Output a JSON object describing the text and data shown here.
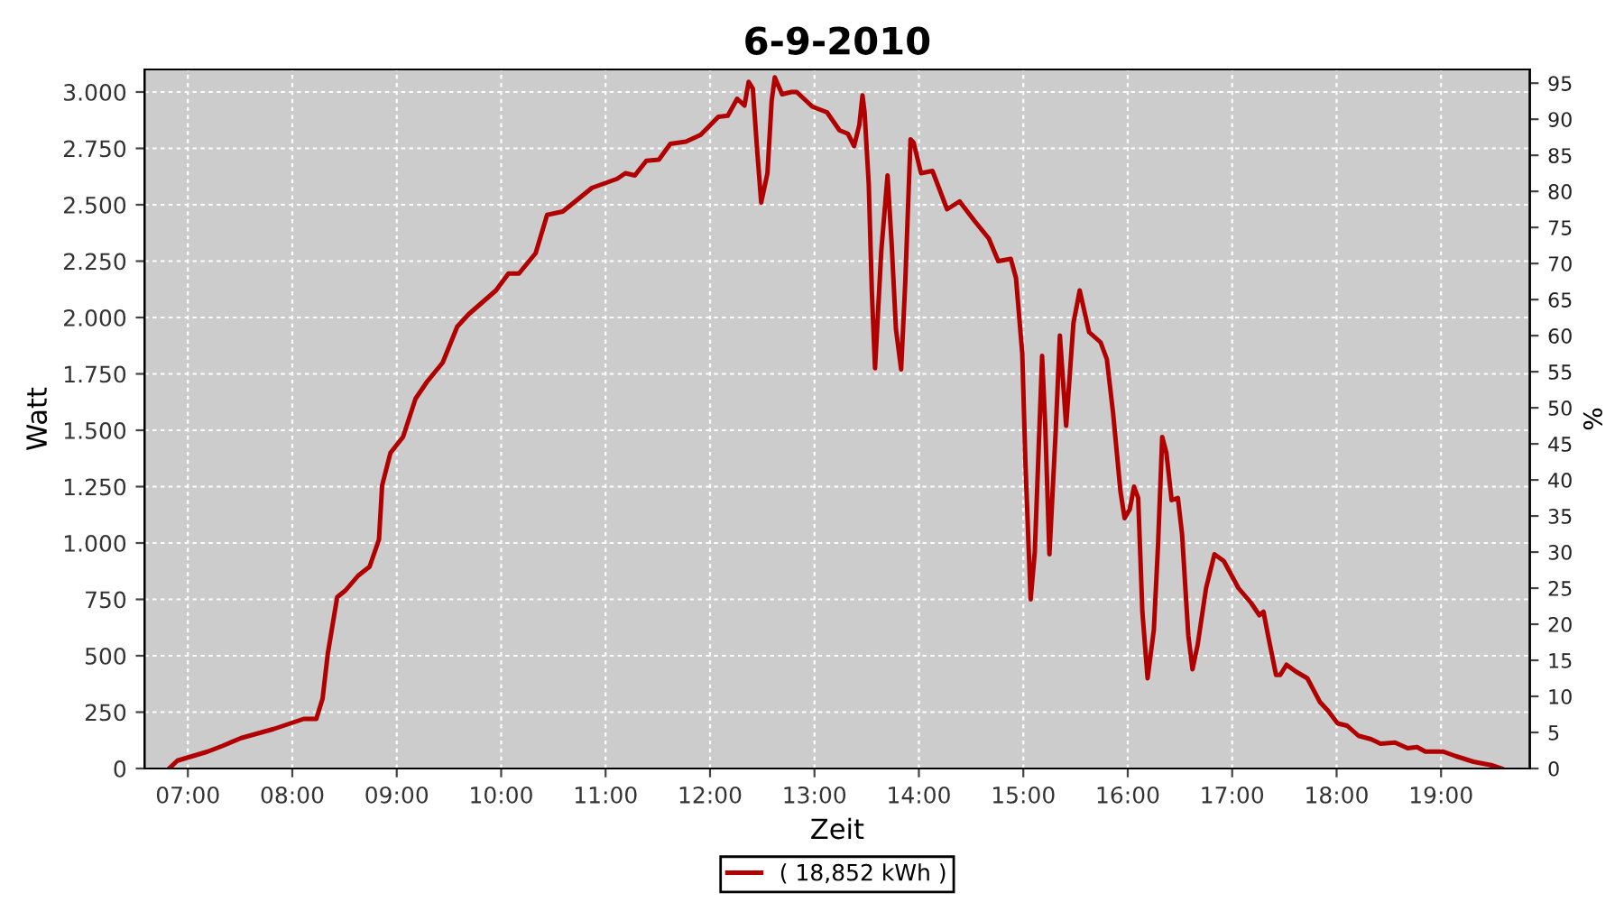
{
  "chart_data": {
    "type": "line",
    "title": "6-9-2010",
    "xlabel": "Zeit",
    "ylabel": "Watt",
    "y2label": "%",
    "x": [
      6.82,
      6.9,
      7.19,
      7.33,
      7.51,
      7.82,
      8.11,
      8.23,
      8.29,
      8.34,
      8.43,
      8.51,
      8.63,
      8.74,
      8.83,
      8.86,
      8.94,
      9.06,
      9.18,
      9.29,
      9.44,
      9.58,
      9.69,
      9.95,
      10.07,
      10.17,
      10.33,
      10.44,
      10.59,
      10.87,
      11.11,
      11.19,
      11.28,
      11.39,
      11.51,
      11.62,
      11.77,
      11.91,
      12.08,
      12.17,
      12.26,
      12.33,
      12.37,
      12.41,
      12.45,
      12.49,
      12.55,
      12.59,
      12.62,
      12.69,
      12.78,
      12.83,
      12.98,
      13.12,
      13.24,
      13.32,
      13.38,
      13.43,
      13.46,
      13.48,
      13.52,
      13.55,
      13.58,
      13.64,
      13.7,
      13.74,
      13.78,
      13.83,
      13.87,
      13.92,
      13.95,
      14.02,
      14.13,
      14.27,
      14.39,
      14.53,
      14.67,
      14.76,
      14.88,
      14.93,
      14.99,
      15.02,
      15.07,
      15.11,
      15.18,
      15.21,
      15.25,
      15.31,
      15.35,
      15.41,
      15.48,
      15.54,
      15.63,
      15.74,
      15.8,
      15.86,
      15.93,
      15.97,
      16.02,
      16.06,
      16.1,
      16.14,
      16.19,
      16.25,
      16.29,
      16.33,
      16.37,
      16.42,
      16.48,
      16.52,
      16.58,
      16.62,
      16.67,
      16.75,
      16.83,
      16.92,
      17.06,
      17.18,
      17.26,
      17.3,
      17.35,
      17.42,
      17.46,
      17.52,
      17.61,
      17.72,
      17.84,
      17.92,
      18.01,
      18.1,
      18.21,
      18.33,
      18.42,
      18.56,
      18.68,
      18.77,
      18.85,
      19.02,
      19.14,
      19.31,
      19.48,
      19.58
    ],
    "series": [
      {
        "name": "( 18,852 kWh )",
        "color": "#b00000",
        "values": [
          0,
          35,
          75,
          100,
          135,
          175,
          220,
          220,
          310,
          510,
          760,
          790,
          855,
          895,
          1015,
          1255,
          1400,
          1470,
          1640,
          1715,
          1800,
          1960,
          2015,
          2120,
          2195,
          2195,
          2285,
          2455,
          2470,
          2575,
          2615,
          2640,
          2630,
          2695,
          2700,
          2770,
          2780,
          2810,
          2890,
          2895,
          2970,
          2940,
          3045,
          3015,
          2750,
          2510,
          2640,
          2960,
          3065,
          2990,
          3000,
          3000,
          2935,
          2910,
          2830,
          2815,
          2760,
          2855,
          2985,
          2910,
          2590,
          2110,
          1775,
          2295,
          2630,
          2320,
          1950,
          1770,
          2160,
          2790,
          2775,
          2640,
          2650,
          2480,
          2515,
          2430,
          2350,
          2250,
          2260,
          2175,
          1840,
          1360,
          750,
          960,
          1830,
          1520,
          950,
          1495,
          1920,
          1520,
          1975,
          2120,
          1935,
          1890,
          1815,
          1575,
          1230,
          1110,
          1150,
          1250,
          1200,
          695,
          400,
          615,
          990,
          1470,
          1400,
          1190,
          1200,
          1040,
          590,
          440,
          550,
          800,
          950,
          920,
          800,
          735,
          680,
          695,
          575,
          415,
          415,
          460,
          430,
          400,
          295,
          255,
          200,
          190,
          145,
          130,
          110,
          115,
          90,
          95,
          75,
          75,
          55,
          30,
          15,
          0
        ]
      }
    ],
    "xlim": [
      6.585,
      19.85
    ],
    "xticks": [
      {
        "value": 7,
        "label": "07:00"
      },
      {
        "value": 8,
        "label": "08:00"
      },
      {
        "value": 9,
        "label": "09:00"
      },
      {
        "value": 10,
        "label": "10:00"
      },
      {
        "value": 11,
        "label": "11:00"
      },
      {
        "value": 12,
        "label": "12:00"
      },
      {
        "value": 13,
        "label": "13:00"
      },
      {
        "value": 14,
        "label": "14:00"
      },
      {
        "value": 15,
        "label": "15:00"
      },
      {
        "value": 16,
        "label": "16:00"
      },
      {
        "value": 17,
        "label": "17:00"
      },
      {
        "value": 18,
        "label": "18:00"
      },
      {
        "value": 19,
        "label": "19:00"
      }
    ],
    "ylim": [
      0,
      3100
    ],
    "yticks": [
      0,
      {
        "value": 250,
        "label": "250"
      },
      {
        "value": 500,
        "label": "500"
      },
      {
        "value": 750,
        "label": "750"
      },
      {
        "value": 1000,
        "label": "1.000"
      },
      {
        "value": 1250,
        "label": "1.250"
      },
      {
        "value": 1500,
        "label": "1.500"
      },
      {
        "value": 1750,
        "label": "1.750"
      },
      {
        "value": 2000,
        "label": "2.000"
      },
      {
        "value": 2250,
        "label": "2.250"
      },
      {
        "value": 2500,
        "label": "2.500"
      },
      {
        "value": 2750,
        "label": "2.750"
      },
      {
        "value": 3000,
        "label": "3.000"
      }
    ],
    "y2lim": [
      0,
      96.9
    ],
    "y2ticks": [
      0,
      5,
      10,
      15,
      20,
      25,
      30,
      35,
      40,
      45,
      50,
      55,
      60,
      65,
      70,
      75,
      80,
      85,
      90,
      95
    ],
    "grid": true,
    "legend": "bottom",
    "marker": "none",
    "line_style": "solid"
  }
}
